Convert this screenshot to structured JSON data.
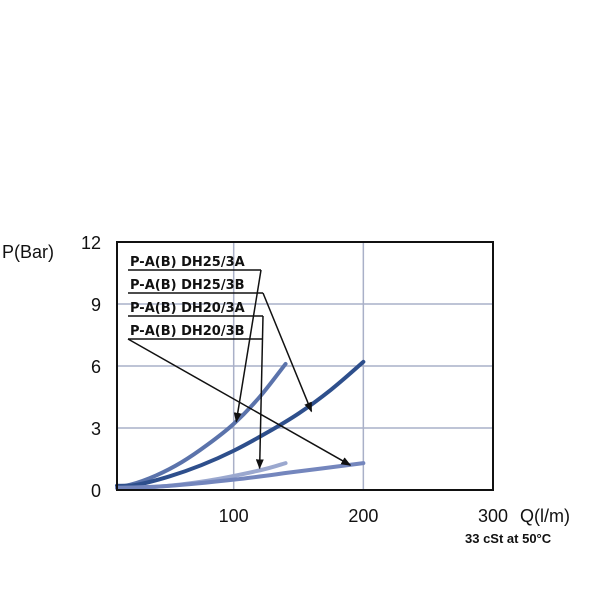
{
  "chart_data": {
    "type": "line",
    "title": "",
    "ylabel": "P(Bar)",
    "xlabel": "Q(l/m)",
    "note": "33 cSt at 50°C",
    "xlim": [
      10,
      300
    ],
    "ylim": [
      0,
      12
    ],
    "x_ticks": [
      100,
      200,
      300
    ],
    "y_ticks": [
      0,
      3,
      6,
      9,
      12
    ],
    "grid": true,
    "series": [
      {
        "name": "P-A(B) DH25/3A",
        "color": "#5b73ab",
        "x": [
          10,
          20,
          40,
          60,
          80,
          100,
          120,
          140
        ],
        "y": [
          0.2,
          0.25,
          0.7,
          1.35,
          2.2,
          3.2,
          4.5,
          6.1
        ]
      },
      {
        "name": "P-A(B) DH25/3B",
        "color": "#2e4f8c",
        "x": [
          10,
          25,
          50,
          75,
          100,
          125,
          150,
          175,
          200
        ],
        "y": [
          0.2,
          0.25,
          0.65,
          1.2,
          1.9,
          2.75,
          3.7,
          4.85,
          6.2
        ]
      },
      {
        "name": "P-A(B) DH20/3A",
        "color": "#9ba8cf",
        "x": [
          10,
          40,
          80,
          120,
          140
        ],
        "y": [
          0.1,
          0.15,
          0.45,
          0.95,
          1.3
        ]
      },
      {
        "name": "P-A(B) DH20/3B",
        "color": "#7486bd",
        "x": [
          10,
          50,
          100,
          150,
          200
        ],
        "y": [
          0.1,
          0.2,
          0.5,
          0.9,
          1.3
        ]
      }
    ],
    "legend_placement": "top-left"
  }
}
